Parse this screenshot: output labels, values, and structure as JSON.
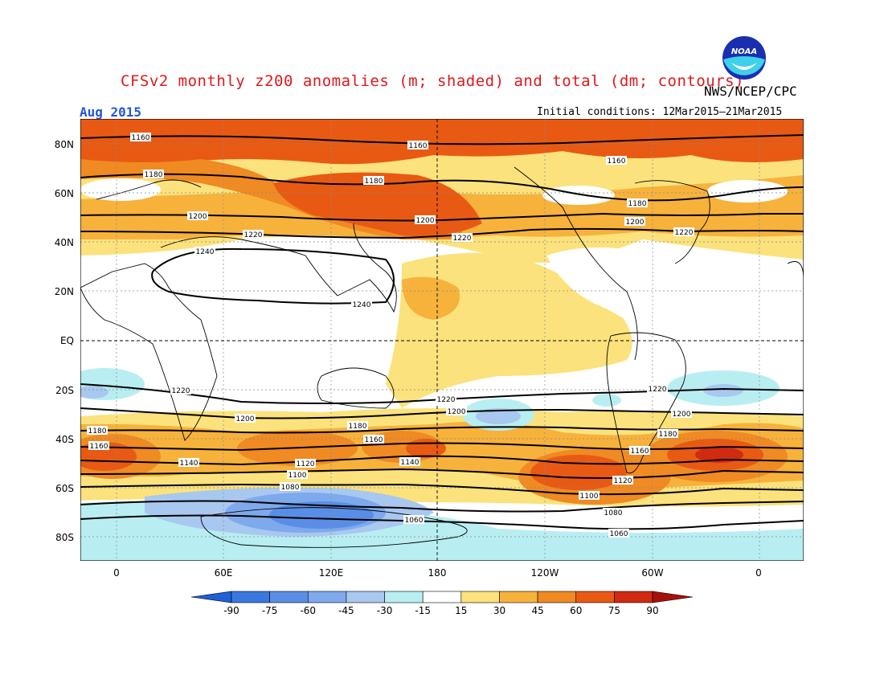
{
  "title": "CFSv2 monthly z200 anomalies (m; shaded) and total (dm; contours)",
  "organization": "NWS/NCEP/CPC",
  "logo_text": "NOAA",
  "month": "Aug 2015",
  "initial_conditions": "Initial conditions: 12Mar2015–21Mar2015",
  "lat_labels": [
    "80N",
    "60N",
    "40N",
    "20N",
    "EQ",
    "20S",
    "40S",
    "60S",
    "80S"
  ],
  "lon_labels": [
    "0",
    "60E",
    "120E",
    "180",
    "120W",
    "60W",
    "0"
  ],
  "colorbar": {
    "ticks": [
      "-90",
      "-75",
      "-60",
      "-45",
      "-30",
      "-15",
      "15",
      "30",
      "45",
      "60",
      "75",
      "90"
    ],
    "colors": [
      "#2060d8",
      "#3a78e0",
      "#5a8ee6",
      "#7ea9ec",
      "#a8c8f0",
      "#b8eef2",
      "#ffffff",
      "#fbe27c",
      "#f7b23c",
      "#f08a22",
      "#e85a14",
      "#d02a10",
      "#a8100a"
    ]
  },
  "contour_labels": [
    "1160",
    "1160",
    "1160",
    "1180",
    "1180",
    "1180",
    "1200",
    "1200",
    "1200",
    "1220",
    "1220",
    "1220",
    "1240",
    "1240",
    "1220",
    "1220",
    "1220",
    "1200",
    "1200",
    "1200",
    "1180",
    "1180",
    "1160",
    "1160",
    "1140",
    "1140",
    "1120",
    "1120",
    "1100",
    "1100",
    "1080",
    "1080",
    "1060",
    "1060",
    "1160",
    "1180"
  ]
}
